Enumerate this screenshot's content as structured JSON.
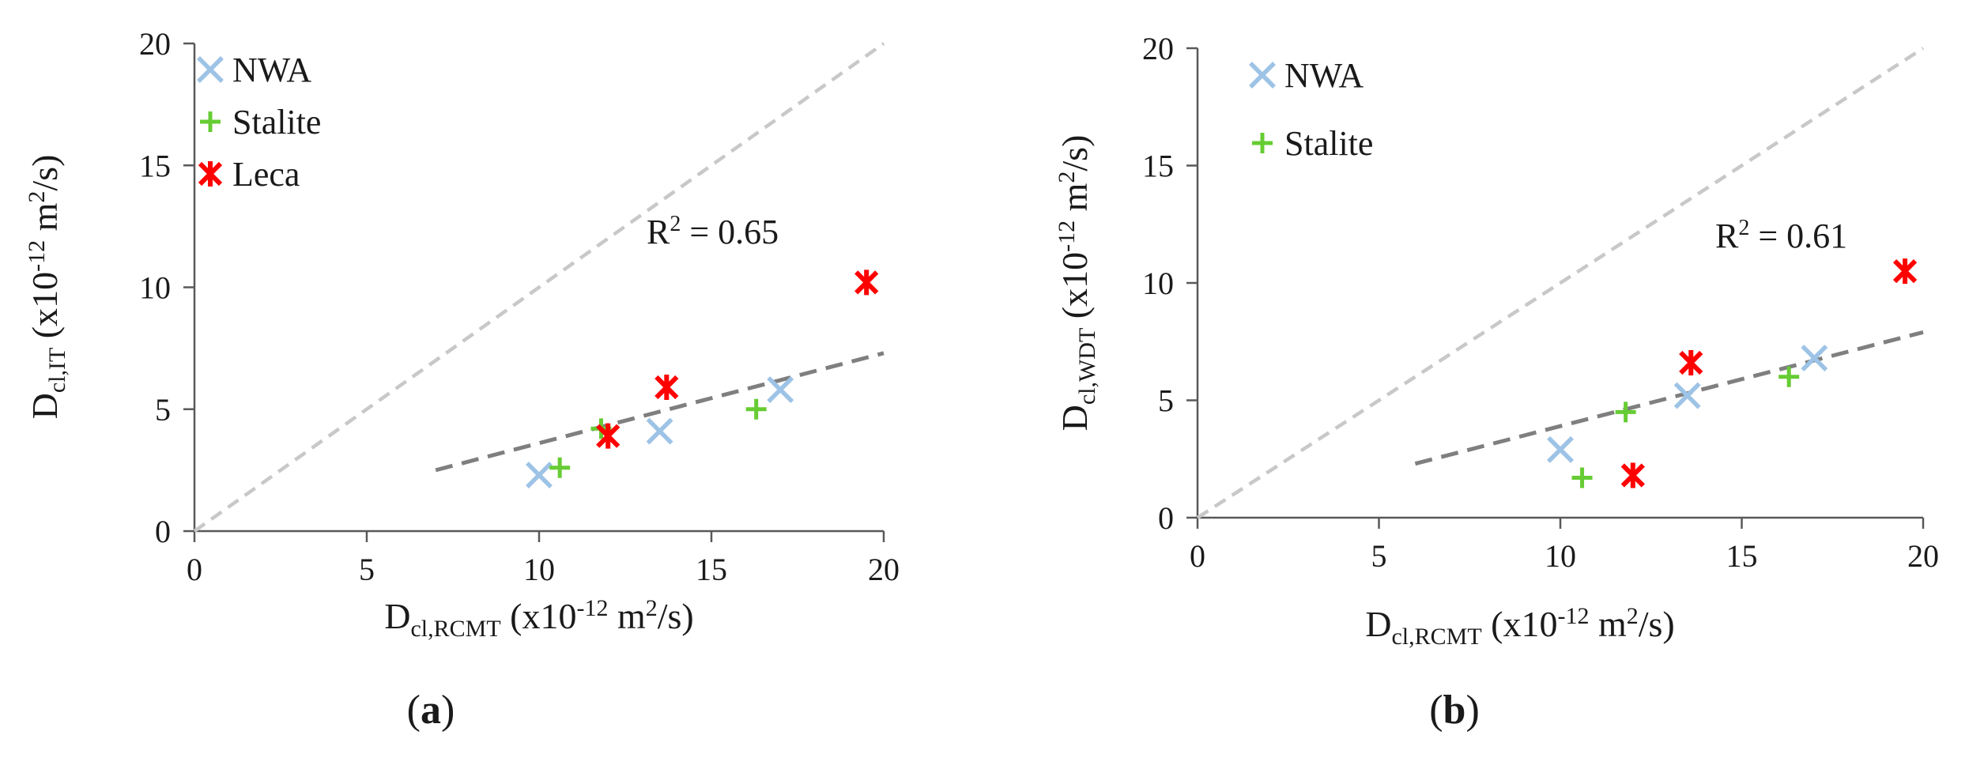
{
  "chart_data": [
    {
      "panel": "a",
      "caption": "(a)",
      "caption_parts": [
        "(",
        "a",
        ")"
      ],
      "type": "scatter",
      "xlabel": {
        "main": "D",
        "sub": "cl,RCMT",
        "rest": " (x10",
        "sup": "-12",
        "unit": " m",
        "unit_sup": "2",
        "unit_end": "/s)"
      },
      "ylabel": {
        "main": "D",
        "sub": "cl,IT",
        "rest": " (x10",
        "sup": "-12",
        "unit": " m",
        "unit_sup": "2",
        "unit_end": "/s)"
      },
      "xlim": [
        0,
        20
      ],
      "ylim": [
        0,
        20
      ],
      "xticks": [
        "0",
        "5",
        "10",
        "15",
        "20"
      ],
      "yticks": [
        "0",
        "5",
        "10",
        "15",
        "20"
      ],
      "grid": false,
      "legend_position": "top-left",
      "series": [
        {
          "name": "NWA",
          "marker": "x",
          "color": "#9dc3e6",
          "points": [
            [
              10.0,
              2.3
            ],
            [
              13.5,
              4.1
            ],
            [
              17.0,
              5.8
            ]
          ]
        },
        {
          "name": "Stalite",
          "marker": "plus",
          "color": "#66cc33",
          "points": [
            [
              10.6,
              2.6
            ],
            [
              11.8,
              4.2
            ],
            [
              16.3,
              5.0
            ]
          ]
        },
        {
          "name": "Leca",
          "marker": "asterisk",
          "color": "#ff0000",
          "points": [
            [
              12.0,
              3.9
            ],
            [
              13.7,
              5.9
            ],
            [
              19.5,
              10.2
            ]
          ]
        }
      ],
      "equality_line": {
        "from": [
          0,
          0
        ],
        "to": [
          20,
          20
        ],
        "color": "#c8c8c8"
      },
      "trendline": {
        "from": [
          7.0,
          2.5
        ],
        "to": [
          20.0,
          7.3
        ],
        "color": "#7f7f7f"
      },
      "r2_label": {
        "prefix": "R",
        "sup": "2",
        "value": " = 0.65"
      }
    },
    {
      "panel": "b",
      "caption": "(b)",
      "caption_parts": [
        "(",
        "b",
        ")"
      ],
      "type": "scatter",
      "xlabel": {
        "main": "D",
        "sub": "cl,RCMT",
        "rest": " (x10",
        "sup": "-12",
        "unit": " m",
        "unit_sup": "2",
        "unit_end": "/s)"
      },
      "ylabel": {
        "main": "D",
        "sub": "cl,WDT",
        "rest": " (x10",
        "sup": "-12",
        "unit": " m",
        "unit_sup": "2",
        "unit_end": "/s)"
      },
      "xlim": [
        0,
        20
      ],
      "ylim": [
        0,
        20
      ],
      "xticks": [
        "0",
        "5",
        "10",
        "15",
        "20"
      ],
      "yticks": [
        "0",
        "5",
        "10",
        "15",
        "20"
      ],
      "grid": false,
      "legend_position": "top-left",
      "series": [
        {
          "name": "NWA",
          "marker": "x",
          "color": "#9dc3e6",
          "points": [
            [
              10.0,
              2.9
            ],
            [
              13.5,
              5.2
            ],
            [
              17.0,
              6.8
            ]
          ]
        },
        {
          "name": "Stalite",
          "marker": "plus",
          "color": "#66cc33",
          "points": [
            [
              10.6,
              1.7
            ],
            [
              11.8,
              4.5
            ],
            [
              16.3,
              6.0
            ]
          ]
        },
        {
          "name": "",
          "marker": "asterisk",
          "color": "#ff0000",
          "points": [
            [
              12.0,
              1.8
            ],
            [
              13.6,
              6.6
            ],
            [
              19.5,
              10.5
            ]
          ]
        }
      ],
      "equality_line": {
        "from": [
          0,
          0
        ],
        "to": [
          20,
          20
        ],
        "color": "#c8c8c8"
      },
      "trendline": {
        "from": [
          6.0,
          2.3
        ],
        "to": [
          20.0,
          7.9
        ],
        "color": "#7f7f7f"
      },
      "r2_label": {
        "prefix": "R",
        "sup": "2",
        "value": " = 0.61"
      }
    }
  ]
}
